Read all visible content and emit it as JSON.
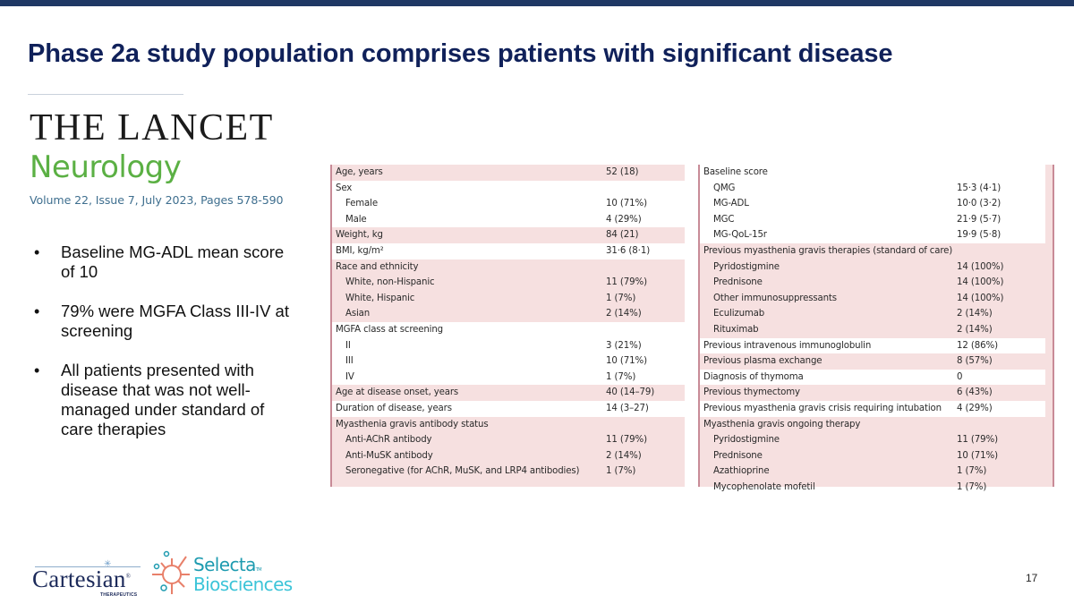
{
  "slide": {
    "title": "Phase 2a study population comprises patients with significant disease",
    "page_number": "17",
    "accent_color": "#1f3864",
    "title_color": "#10215a"
  },
  "journal": {
    "name_line1": "THE LANCET",
    "name_line2": "Neurology",
    "citation": "Volume 22, Issue 7, July 2023, Pages 578-590"
  },
  "bullets": [
    "Baseline MG-ADL mean score of 10",
    "79% were MGFA Class III-IV at screening",
    "All patients presented with disease that was not well-managed under standard of care therapies"
  ],
  "bullet_symbol": "•",
  "table_left": {
    "rows": [
      {
        "label": "Age, years",
        "value": "52 (18)",
        "indent": false,
        "band": "pink"
      },
      {
        "label": "Sex",
        "value": "",
        "indent": false,
        "band": "white"
      },
      {
        "label": "Female",
        "value": "10 (71%)",
        "indent": true,
        "band": "white"
      },
      {
        "label": "Male",
        "value": "4 (29%)",
        "indent": true,
        "band": "white"
      },
      {
        "label": "Weight, kg",
        "value": "84 (21)",
        "indent": false,
        "band": "pink"
      },
      {
        "label": "BMI, kg/m²",
        "value": "31·6 (8·1)",
        "indent": false,
        "band": "white"
      },
      {
        "label": "Race and ethnicity",
        "value": "",
        "indent": false,
        "band": "pink"
      },
      {
        "label": "White, non-Hispanic",
        "value": "11 (79%)",
        "indent": true,
        "band": "pink"
      },
      {
        "label": "White, Hispanic",
        "value": "1 (7%)",
        "indent": true,
        "band": "pink"
      },
      {
        "label": "Asian",
        "value": "2 (14%)",
        "indent": true,
        "band": "pink"
      },
      {
        "label": "MGFA class at screening",
        "value": "",
        "indent": false,
        "band": "white"
      },
      {
        "label": "II",
        "value": "3 (21%)",
        "indent": true,
        "band": "white"
      },
      {
        "label": "III",
        "value": "10 (71%)",
        "indent": true,
        "band": "white"
      },
      {
        "label": "IV",
        "value": "1 (7%)",
        "indent": true,
        "band": "white"
      },
      {
        "label": "Age at disease onset, years",
        "value": "40 (14–79)",
        "indent": false,
        "band": "pink"
      },
      {
        "label": "Duration of disease, years",
        "value": "14 (3–27)",
        "indent": false,
        "band": "white"
      },
      {
        "label": "Myasthenia gravis antibody status",
        "value": "",
        "indent": false,
        "band": "pink"
      },
      {
        "label": "Anti-AChR antibody",
        "value": "11 (79%)",
        "indent": true,
        "band": "pink"
      },
      {
        "label": "Anti-MuSK antibody",
        "value": "2 (14%)",
        "indent": true,
        "band": "pink"
      },
      {
        "label": "Seronegative (for AChR, MuSK, and LRP4 antibodies)",
        "value": "1 (7%)",
        "indent": true,
        "band": "pink"
      }
    ]
  },
  "table_right": {
    "rows": [
      {
        "label": "Baseline score",
        "value": "",
        "indent": false,
        "band": "white"
      },
      {
        "label": "QMG",
        "value": "15·3 (4·1)",
        "indent": true,
        "band": "white"
      },
      {
        "label": "MG-ADL",
        "value": "10·0 (3·2)",
        "indent": true,
        "band": "white"
      },
      {
        "label": "MGC",
        "value": "21·9 (5·7)",
        "indent": true,
        "band": "white"
      },
      {
        "label": "MG-QoL-15r",
        "value": "19·9 (5·8)",
        "indent": true,
        "band": "white"
      },
      {
        "label": "Previous myasthenia gravis therapies (standard of care)",
        "value": "",
        "indent": false,
        "band": "pink"
      },
      {
        "label": "Pyridostigmine",
        "value": "14 (100%)",
        "indent": true,
        "band": "pink"
      },
      {
        "label": "Prednisone",
        "value": "14 (100%)",
        "indent": true,
        "band": "pink"
      },
      {
        "label": "Other immunosuppressants",
        "value": "14 (100%)",
        "indent": true,
        "band": "pink"
      },
      {
        "label": "Eculizumab",
        "value": "2 (14%)",
        "indent": true,
        "band": "pink"
      },
      {
        "label": "Rituximab",
        "value": "2 (14%)",
        "indent": true,
        "band": "pink"
      },
      {
        "label": "Previous intravenous immunoglobulin",
        "value": "12 (86%)",
        "indent": false,
        "band": "white"
      },
      {
        "label": "Previous plasma exchange",
        "value": "8 (57%)",
        "indent": false,
        "band": "pink"
      },
      {
        "label": "Diagnosis of thymoma",
        "value": "0",
        "indent": false,
        "band": "white"
      },
      {
        "label": "Previous thymectomy",
        "value": "6 (43%)",
        "indent": false,
        "band": "pink"
      },
      {
        "label": "Previous myasthenia gravis crisis requiring intubation",
        "value": "4 (29%)",
        "indent": false,
        "band": "white"
      },
      {
        "label": "Myasthenia gravis ongoing therapy",
        "value": "",
        "indent": false,
        "band": "pink"
      },
      {
        "label": "Pyridostigmine",
        "value": "11 (79%)",
        "indent": true,
        "band": "pink"
      },
      {
        "label": "Prednisone",
        "value": "10 (71%)",
        "indent": true,
        "band": "pink"
      },
      {
        "label": "Azathioprine",
        "value": "1 (7%)",
        "indent": true,
        "band": "pink"
      },
      {
        "label": "Mycophenolate mofetil",
        "value": "1 (7%)",
        "indent": true,
        "band": "pink"
      }
    ]
  },
  "logos": {
    "cartesian": "Cartesian",
    "cartesian_sub": "THERAPEUTICS",
    "cartesian_reg": "®",
    "selecta_line1": "Selecta",
    "selecta_tm": "TM",
    "selecta_line2": "Biosciences",
    "selecta_icon": "selecta-sun-mark"
  }
}
